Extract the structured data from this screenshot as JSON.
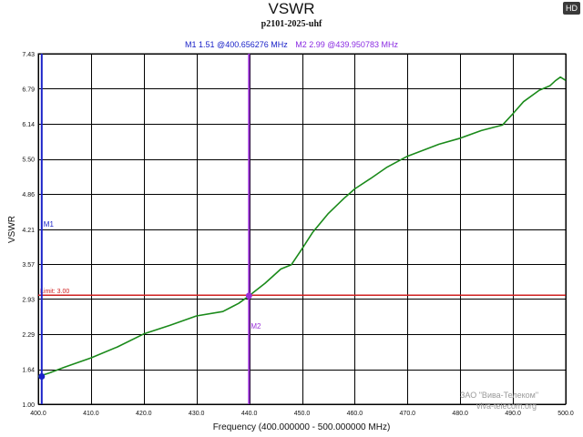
{
  "badge": "HD",
  "watermark": {
    "line1": "ЗАО \"Вива-Телеком\"",
    "line2": "viva-telecom.org"
  },
  "markers": {
    "m1": {
      "label": "M1",
      "readout": "M1  1.51 @400.656276 MHz",
      "x": 400.656276,
      "y": 1.51
    },
    "m2": {
      "label": "M2",
      "readout": "M2  2.99 @439.950783 MHz",
      "x": 439.950783,
      "y": 2.99
    }
  },
  "colors": {
    "trace": "#1a8a1a",
    "limit": "#d02020",
    "m1": "#1a22c8",
    "m2": "#9a30d8",
    "grid": "#000000"
  },
  "chart_data": {
    "type": "line",
    "title": "VSWR",
    "subtitle": "p2101-2025-uhf",
    "xlabel": "Frequency (400.000000 - 500.000000 MHz)",
    "ylabel": "VSWR",
    "xlim": [
      400,
      500
    ],
    "ylim": [
      1.0,
      7.43
    ],
    "x_ticks": [
      "400.0",
      "410.0",
      "420.0",
      "430.0",
      "440.0",
      "450.0",
      "460.0",
      "470.0",
      "480.0",
      "490.0",
      "500.0"
    ],
    "y_ticks": [
      "1.00",
      "1.64",
      "2.29",
      "2.93",
      "3.57",
      "4.21",
      "4.86",
      "5.50",
      "6.14",
      "6.79",
      "7.43"
    ],
    "limit": {
      "label": "Limit: 3.00",
      "value": 3.0
    },
    "grid": true,
    "series": [
      {
        "x": [
          400,
          402,
          405,
          410,
          415,
          420,
          425,
          430,
          435,
          438,
          440,
          443,
          446,
          448,
          450,
          452,
          455,
          458,
          460,
          463,
          466,
          470,
          473,
          476,
          480,
          484,
          488,
          490,
          492,
          495,
          497,
          498,
          499,
          500
        ],
        "y": [
          1.51,
          1.57,
          1.68,
          1.85,
          2.05,
          2.29,
          2.45,
          2.62,
          2.7,
          2.85,
          2.99,
          3.22,
          3.48,
          3.56,
          3.85,
          4.15,
          4.5,
          4.78,
          4.95,
          5.14,
          5.34,
          5.55,
          5.66,
          5.77,
          5.88,
          6.02,
          6.12,
          6.33,
          6.55,
          6.76,
          6.84,
          6.93,
          7.0,
          6.94
        ]
      }
    ]
  }
}
